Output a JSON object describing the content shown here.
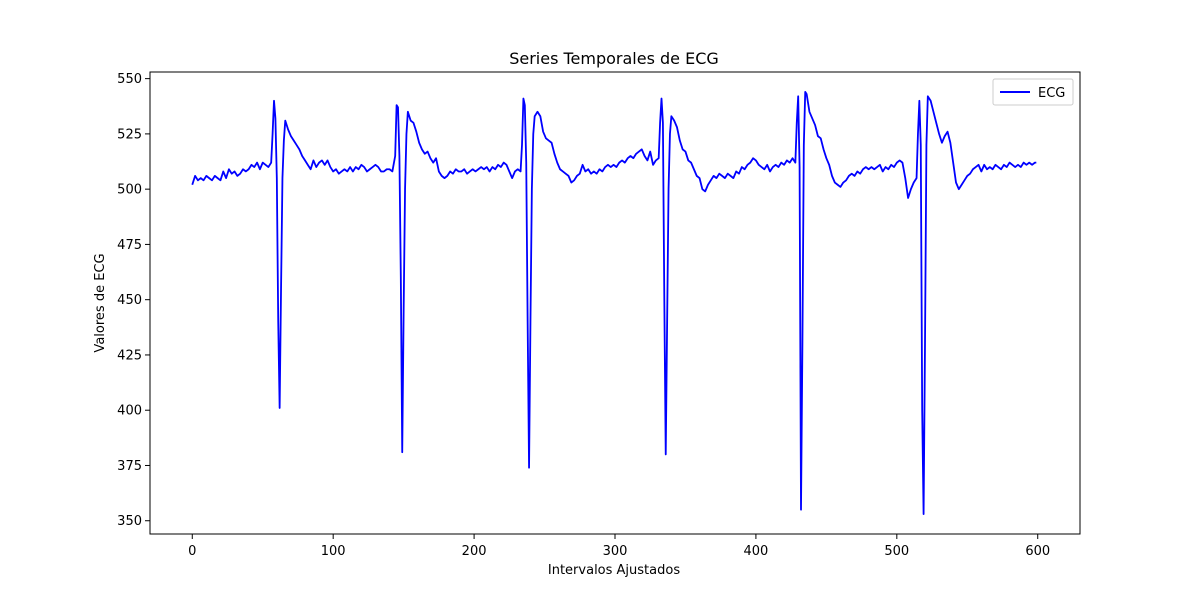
{
  "chart_data": {
    "type": "line",
    "title": "Series Temporales de ECG",
    "xlabel": "Intervalos Ajustados",
    "ylabel": "Valores de ECG",
    "xlim": [
      -30,
      630
    ],
    "ylim": [
      344,
      553
    ],
    "xticks": [
      0,
      100,
      200,
      300,
      400,
      500,
      600
    ],
    "yticks": [
      350,
      375,
      400,
      425,
      450,
      475,
      500,
      525,
      550
    ],
    "grid": false,
    "legend_position": "top-right",
    "series": [
      {
        "name": "ECG",
        "color": "#0000ff",
        "points": [
          [
            0,
            502
          ],
          [
            2,
            506
          ],
          [
            4,
            504
          ],
          [
            6,
            505
          ],
          [
            8,
            504
          ],
          [
            10,
            506
          ],
          [
            12,
            505
          ],
          [
            14,
            504
          ],
          [
            16,
            506
          ],
          [
            18,
            505
          ],
          [
            20,
            504
          ],
          [
            22,
            508
          ],
          [
            24,
            505
          ],
          [
            26,
            509
          ],
          [
            28,
            507
          ],
          [
            30,
            508
          ],
          [
            32,
            506
          ],
          [
            34,
            507
          ],
          [
            36,
            509
          ],
          [
            38,
            508
          ],
          [
            40,
            509
          ],
          [
            42,
            511
          ],
          [
            44,
            510
          ],
          [
            46,
            512
          ],
          [
            48,
            509
          ],
          [
            50,
            512
          ],
          [
            52,
            511
          ],
          [
            54,
            510
          ],
          [
            56,
            512
          ],
          [
            57,
            525
          ],
          [
            58,
            540
          ],
          [
            59,
            532
          ],
          [
            60,
            505
          ],
          [
            61,
            440
          ],
          [
            62,
            401
          ],
          [
            63,
            455
          ],
          [
            64,
            505
          ],
          [
            65,
            522
          ],
          [
            66,
            531
          ],
          [
            68,
            527
          ],
          [
            70,
            524
          ],
          [
            72,
            522
          ],
          [
            74,
            520
          ],
          [
            76,
            518
          ],
          [
            78,
            515
          ],
          [
            80,
            513
          ],
          [
            82,
            511
          ],
          [
            84,
            509
          ],
          [
            86,
            513
          ],
          [
            88,
            510
          ],
          [
            90,
            512
          ],
          [
            92,
            513
          ],
          [
            94,
            511
          ],
          [
            96,
            513
          ],
          [
            98,
            510
          ],
          [
            100,
            508
          ],
          [
            102,
            509
          ],
          [
            104,
            507
          ],
          [
            106,
            508
          ],
          [
            108,
            509
          ],
          [
            110,
            508
          ],
          [
            112,
            510
          ],
          [
            114,
            508
          ],
          [
            116,
            510
          ],
          [
            118,
            509
          ],
          [
            120,
            511
          ],
          [
            122,
            510
          ],
          [
            124,
            508
          ],
          [
            126,
            509
          ],
          [
            128,
            510
          ],
          [
            130,
            511
          ],
          [
            132,
            510
          ],
          [
            134,
            508
          ],
          [
            136,
            508
          ],
          [
            138,
            509
          ],
          [
            140,
            509
          ],
          [
            142,
            508
          ],
          [
            144,
            515
          ],
          [
            145,
            538
          ],
          [
            146,
            537
          ],
          [
            147,
            515
          ],
          [
            148,
            460
          ],
          [
            149,
            381
          ],
          [
            150,
            445
          ],
          [
            151,
            500
          ],
          [
            152,
            525
          ],
          [
            153,
            535
          ],
          [
            155,
            531
          ],
          [
            157,
            530
          ],
          [
            159,
            526
          ],
          [
            161,
            521
          ],
          [
            163,
            518
          ],
          [
            165,
            516
          ],
          [
            167,
            517
          ],
          [
            169,
            514
          ],
          [
            171,
            512
          ],
          [
            173,
            514
          ],
          [
            175,
            508
          ],
          [
            177,
            506
          ],
          [
            179,
            505
          ],
          [
            181,
            506
          ],
          [
            183,
            508
          ],
          [
            185,
            507
          ],
          [
            187,
            509
          ],
          [
            189,
            508
          ],
          [
            191,
            508
          ],
          [
            193,
            509
          ],
          [
            195,
            507
          ],
          [
            197,
            508
          ],
          [
            199,
            509
          ],
          [
            201,
            508
          ],
          [
            203,
            509
          ],
          [
            205,
            510
          ],
          [
            207,
            509
          ],
          [
            209,
            510
          ],
          [
            211,
            508
          ],
          [
            213,
            510
          ],
          [
            215,
            509
          ],
          [
            217,
            511
          ],
          [
            219,
            510
          ],
          [
            221,
            512
          ],
          [
            223,
            511
          ],
          [
            225,
            508
          ],
          [
            227,
            505
          ],
          [
            229,
            508
          ],
          [
            231,
            509
          ],
          [
            233,
            508
          ],
          [
            234,
            520
          ],
          [
            235,
            541
          ],
          [
            236,
            538
          ],
          [
            237,
            512
          ],
          [
            238,
            440
          ],
          [
            239,
            374
          ],
          [
            240,
            440
          ],
          [
            241,
            500
          ],
          [
            242,
            525
          ],
          [
            243,
            533
          ],
          [
            245,
            535
          ],
          [
            247,
            533
          ],
          [
            249,
            526
          ],
          [
            251,
            523
          ],
          [
            253,
            522
          ],
          [
            255,
            521
          ],
          [
            257,
            516
          ],
          [
            259,
            512
          ],
          [
            261,
            509
          ],
          [
            263,
            508
          ],
          [
            265,
            507
          ],
          [
            267,
            506
          ],
          [
            269,
            503
          ],
          [
            271,
            504
          ],
          [
            273,
            506
          ],
          [
            275,
            507
          ],
          [
            277,
            511
          ],
          [
            279,
            508
          ],
          [
            281,
            509
          ],
          [
            283,
            507
          ],
          [
            285,
            508
          ],
          [
            287,
            507
          ],
          [
            289,
            509
          ],
          [
            291,
            508
          ],
          [
            293,
            510
          ],
          [
            295,
            511
          ],
          [
            297,
            510
          ],
          [
            299,
            511
          ],
          [
            301,
            510
          ],
          [
            303,
            512
          ],
          [
            305,
            513
          ],
          [
            307,
            512
          ],
          [
            309,
            514
          ],
          [
            311,
            515
          ],
          [
            313,
            514
          ],
          [
            315,
            516
          ],
          [
            317,
            517
          ],
          [
            319,
            518
          ],
          [
            321,
            515
          ],
          [
            323,
            513
          ],
          [
            325,
            517
          ],
          [
            327,
            511
          ],
          [
            329,
            513
          ],
          [
            331,
            514
          ],
          [
            332,
            530
          ],
          [
            333,
            541
          ],
          [
            334,
            530
          ],
          [
            335,
            450
          ],
          [
            336,
            380
          ],
          [
            337,
            440
          ],
          [
            338,
            500
          ],
          [
            339,
            525
          ],
          [
            340,
            533
          ],
          [
            342,
            531
          ],
          [
            344,
            528
          ],
          [
            346,
            522
          ],
          [
            348,
            518
          ],
          [
            350,
            517
          ],
          [
            352,
            513
          ],
          [
            354,
            512
          ],
          [
            356,
            509
          ],
          [
            358,
            506
          ],
          [
            360,
            505
          ],
          [
            362,
            500
          ],
          [
            364,
            499
          ],
          [
            366,
            502
          ],
          [
            368,
            504
          ],
          [
            370,
            506
          ],
          [
            372,
            505
          ],
          [
            374,
            507
          ],
          [
            376,
            506
          ],
          [
            378,
            505
          ],
          [
            380,
            507
          ],
          [
            382,
            506
          ],
          [
            384,
            505
          ],
          [
            386,
            508
          ],
          [
            388,
            507
          ],
          [
            390,
            510
          ],
          [
            392,
            509
          ],
          [
            394,
            511
          ],
          [
            396,
            512
          ],
          [
            398,
            514
          ],
          [
            400,
            513
          ],
          [
            402,
            511
          ],
          [
            404,
            510
          ],
          [
            406,
            509
          ],
          [
            408,
            511
          ],
          [
            410,
            508
          ],
          [
            412,
            510
          ],
          [
            414,
            511
          ],
          [
            416,
            510
          ],
          [
            418,
            512
          ],
          [
            420,
            511
          ],
          [
            422,
            513
          ],
          [
            424,
            512
          ],
          [
            426,
            514
          ],
          [
            428,
            512
          ],
          [
            429,
            530
          ],
          [
            430,
            542
          ],
          [
            431,
            510
          ],
          [
            432,
            355
          ],
          [
            433,
            430
          ],
          [
            434,
            520
          ],
          [
            435,
            544
          ],
          [
            436,
            543
          ],
          [
            438,
            535
          ],
          [
            440,
            532
          ],
          [
            442,
            529
          ],
          [
            444,
            524
          ],
          [
            446,
            523
          ],
          [
            448,
            518
          ],
          [
            450,
            514
          ],
          [
            452,
            511
          ],
          [
            454,
            506
          ],
          [
            456,
            503
          ],
          [
            458,
            502
          ],
          [
            460,
            501
          ],
          [
            462,
            503
          ],
          [
            464,
            504
          ],
          [
            466,
            506
          ],
          [
            468,
            507
          ],
          [
            470,
            506
          ],
          [
            472,
            508
          ],
          [
            474,
            507
          ],
          [
            476,
            509
          ],
          [
            478,
            510
          ],
          [
            480,
            509
          ],
          [
            482,
            510
          ],
          [
            484,
            509
          ],
          [
            486,
            510
          ],
          [
            488,
            511
          ],
          [
            490,
            508
          ],
          [
            492,
            510
          ],
          [
            494,
            509
          ],
          [
            496,
            511
          ],
          [
            498,
            510
          ],
          [
            500,
            512
          ],
          [
            502,
            513
          ],
          [
            504,
            512
          ],
          [
            506,
            505
          ],
          [
            508,
            496
          ],
          [
            510,
            500
          ],
          [
            512,
            503
          ],
          [
            514,
            505
          ],
          [
            515,
            525
          ],
          [
            516,
            540
          ],
          [
            517,
            520
          ],
          [
            518,
            400
          ],
          [
            519,
            353
          ],
          [
            520,
            430
          ],
          [
            521,
            520
          ],
          [
            522,
            542
          ],
          [
            524,
            540
          ],
          [
            526,
            535
          ],
          [
            528,
            530
          ],
          [
            530,
            525
          ],
          [
            532,
            521
          ],
          [
            534,
            524
          ],
          [
            536,
            526
          ],
          [
            538,
            521
          ],
          [
            540,
            512
          ],
          [
            542,
            503
          ],
          [
            544,
            500
          ],
          [
            546,
            502
          ],
          [
            548,
            504
          ],
          [
            550,
            506
          ],
          [
            552,
            507
          ],
          [
            554,
            509
          ],
          [
            556,
            510
          ],
          [
            558,
            511
          ],
          [
            560,
            508
          ],
          [
            562,
            511
          ],
          [
            564,
            509
          ],
          [
            566,
            510
          ],
          [
            568,
            509
          ],
          [
            570,
            511
          ],
          [
            572,
            510
          ],
          [
            574,
            509
          ],
          [
            576,
            511
          ],
          [
            578,
            510
          ],
          [
            580,
            512
          ],
          [
            582,
            511
          ],
          [
            584,
            510
          ],
          [
            586,
            511
          ],
          [
            588,
            510
          ],
          [
            590,
            512
          ],
          [
            592,
            511
          ],
          [
            594,
            512
          ],
          [
            596,
            511
          ],
          [
            598,
            512
          ],
          [
            599,
            512
          ]
        ]
      }
    ]
  }
}
